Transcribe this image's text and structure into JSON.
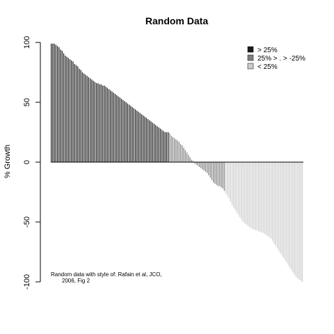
{
  "chart_data": {
    "type": "bar",
    "title": "Random Data",
    "xlabel": "",
    "ylabel": "% Growth",
    "ylim": [
      -100,
      100
    ],
    "yticks": [
      -100,
      -50,
      0,
      50,
      100
    ],
    "legend": {
      "placement": "top-right",
      "entries": [
        {
          "label": "> 25%",
          "color": "#1a1a1a"
        },
        {
          "label": "25% > . > -25%",
          "color": "#808080"
        },
        {
          "label": "< 25%",
          "color": "#cccccc"
        }
      ]
    },
    "annotation": [
      "Random data with style of: Rafain et al, JCO,",
      "2006, Fig 2"
    ],
    "series": [
      {
        "values": [
          99,
          99,
          99,
          98,
          97,
          96,
          94,
          93,
          91,
          89,
          88,
          87,
          86,
          85,
          84,
          82,
          81,
          80,
          78,
          77,
          75,
          74,
          73,
          72,
          71,
          70,
          69,
          68,
          67,
          66,
          66,
          65,
          65,
          64,
          64,
          63,
          62,
          61,
          60,
          59,
          58,
          57,
          56,
          55,
          54,
          53,
          52,
          51,
          50,
          49,
          48,
          47,
          46,
          45,
          44,
          43,
          42,
          41,
          40,
          39,
          38,
          37,
          36,
          35,
          34,
          33,
          32,
          31,
          30,
          29,
          28,
          27,
          26,
          25,
          25,
          25
        ]
      },
      {
        "values": [
          24,
          22,
          21,
          20,
          19,
          18,
          17,
          15,
          14,
          12,
          10,
          8,
          6,
          4,
          2,
          1,
          -1,
          -2,
          -3,
          -4,
          -5,
          -6,
          -7,
          -8,
          -9,
          -11,
          -13,
          -15,
          -17,
          -18,
          -19,
          -20,
          -20,
          -21,
          -22,
          -24
        ]
      },
      {
        "values": [
          -26,
          -28,
          -30,
          -33,
          -36,
          -38,
          -40,
          -42,
          -44,
          -46,
          -48,
          -50,
          -51,
          -52,
          -53,
          -54,
          -55,
          -56,
          -56,
          -57,
          -57,
          -58,
          -58,
          -59,
          -59,
          -60,
          -61,
          -62,
          -63,
          -64,
          -66,
          -68,
          -70,
          -72,
          -74,
          -76,
          -78,
          -80,
          -82,
          -84,
          -86,
          -88,
          -90,
          -92,
          -94,
          -96,
          -97,
          -98,
          -99,
          -100
        ]
      }
    ]
  }
}
